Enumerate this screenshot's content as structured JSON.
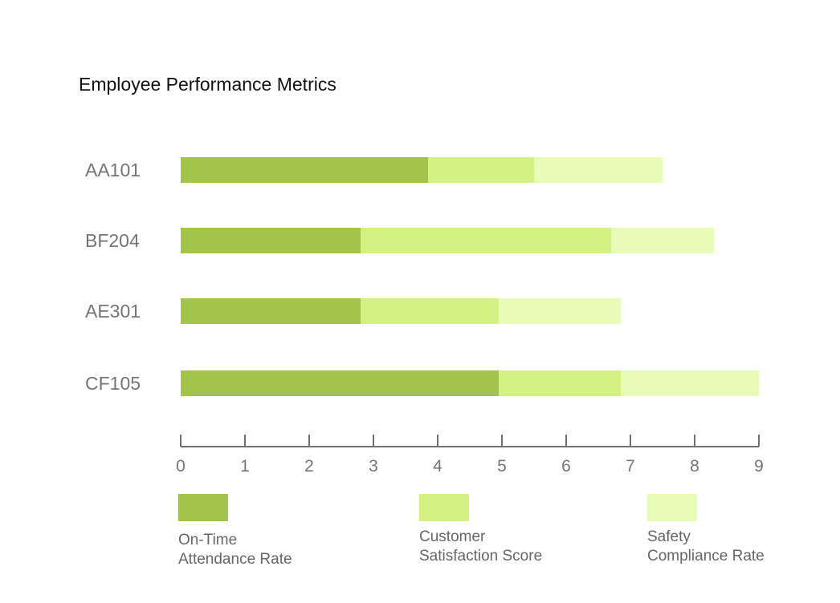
{
  "chart_data": {
    "type": "bar",
    "orientation": "horizontal",
    "stacked": true,
    "title": "Employee Performance Metrics",
    "categories": [
      "AA101",
      "BF204",
      "AE301",
      "CF105"
    ],
    "series": [
      {
        "name": "On-Time Attendance Rate",
        "values": [
          3.85,
          2.8,
          2.8,
          4.95
        ],
        "color": "#a2c44a"
      },
      {
        "name": "Customer Satisfaction Score",
        "values": [
          1.65,
          3.9,
          2.15,
          1.9
        ],
        "color": "#d4f284"
      },
      {
        "name": "Safety Compliance Rate",
        "values": [
          2.0,
          1.6,
          1.9,
          2.15
        ],
        "color": "#e8fcb8"
      }
    ],
    "xlim": [
      0,
      9
    ],
    "xticks": [
      "0",
      "1",
      "2",
      "3",
      "4",
      "5",
      "6",
      "7",
      "8",
      "9"
    ],
    "xlabel": "",
    "ylabel": "",
    "grid": false,
    "legend_position": "bottom"
  }
}
